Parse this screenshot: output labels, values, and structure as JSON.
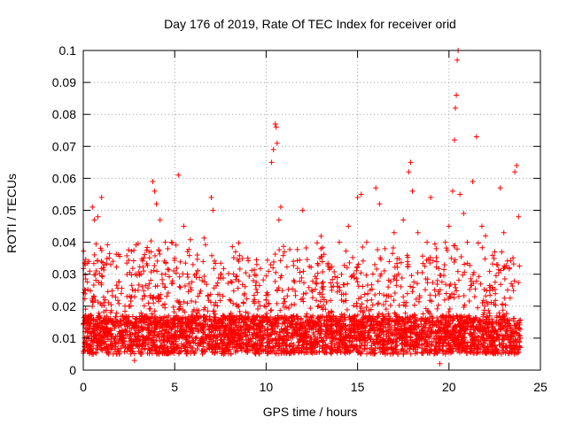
{
  "chart_data": {
    "type": "scatter",
    "title": "Day 176 of 2019, Rate Of TEC Index for receiver orid",
    "xlabel": "GPS time / hours",
    "ylabel": "ROTI / TECUs",
    "xlim": [
      0,
      25
    ],
    "ylim": [
      0,
      0.1
    ],
    "x_ticks": [
      0,
      5,
      10,
      15,
      20,
      25
    ],
    "x_tick_labels": [
      "0",
      "5",
      "10",
      "15",
      "20",
      "25"
    ],
    "y_ticks": [
      0,
      0.01,
      0.02,
      0.03,
      0.04,
      0.05,
      0.06,
      0.07,
      0.08,
      0.09,
      0.1
    ],
    "y_tick_labels": [
      "0",
      "0.01",
      "0.02",
      "0.03",
      "0.04",
      "0.05",
      "0.06",
      "0.07",
      "0.08",
      "0.09",
      "0.1"
    ],
    "grid": true,
    "marker": "+",
    "series_color": "#ff0000",
    "series": [
      {
        "name": "ROTI",
        "points": [
          [
            0.1,
            0.012
          ],
          [
            0.3,
            0.034
          ],
          [
            0.5,
            0.051
          ],
          [
            0.6,
            0.047
          ],
          [
            0.8,
            0.048
          ],
          [
            1.0,
            0.054
          ],
          [
            1.2,
            0.022
          ],
          [
            1.5,
            0.018
          ],
          [
            2.0,
            0.015
          ],
          [
            2.5,
            0.02
          ],
          [
            2.8,
            0.003
          ],
          [
            3.0,
            0.025
          ],
          [
            3.3,
            0.031
          ],
          [
            3.6,
            0.037
          ],
          [
            3.8,
            0.059
          ],
          [
            3.9,
            0.056
          ],
          [
            4.0,
            0.052
          ],
          [
            4.2,
            0.047
          ],
          [
            4.5,
            0.03
          ],
          [
            5.0,
            0.035
          ],
          [
            5.2,
            0.061
          ],
          [
            5.5,
            0.045
          ],
          [
            6.0,
            0.033
          ],
          [
            6.5,
            0.028
          ],
          [
            7.0,
            0.054
          ],
          [
            7.1,
            0.05
          ],
          [
            7.5,
            0.03
          ],
          [
            8.0,
            0.022
          ],
          [
            8.5,
            0.02
          ],
          [
            9.0,
            0.035
          ],
          [
            9.3,
            0.028
          ],
          [
            9.8,
            0.015
          ],
          [
            10.0,
            0.022
          ],
          [
            10.3,
            0.065
          ],
          [
            10.4,
            0.069
          ],
          [
            10.5,
            0.077
          ],
          [
            10.55,
            0.076
          ],
          [
            10.6,
            0.071
          ],
          [
            10.7,
            0.047
          ],
          [
            10.8,
            0.051
          ],
          [
            11.0,
            0.037
          ],
          [
            11.5,
            0.028
          ],
          [
            12.0,
            0.05
          ],
          [
            12.5,
            0.025
          ],
          [
            13.0,
            0.038
          ],
          [
            13.5,
            0.032
          ],
          [
            14.0,
            0.04
          ],
          [
            14.5,
            0.045
          ],
          [
            14.8,
            0.03
          ],
          [
            15.0,
            0.054
          ],
          [
            15.2,
            0.055
          ],
          [
            15.5,
            0.04
          ],
          [
            16.0,
            0.057
          ],
          [
            16.2,
            0.052
          ],
          [
            16.5,
            0.038
          ],
          [
            17.0,
            0.043
          ],
          [
            17.5,
            0.047
          ],
          [
            17.8,
            0.062
          ],
          [
            17.9,
            0.065
          ],
          [
            18.0,
            0.056
          ],
          [
            18.3,
            0.043
          ],
          [
            18.8,
            0.04
          ],
          [
            19.0,
            0.054
          ],
          [
            19.3,
            0.038
          ],
          [
            19.5,
            0.002
          ],
          [
            19.8,
            0.04
          ],
          [
            20.0,
            0.045
          ],
          [
            20.2,
            0.056
          ],
          [
            20.3,
            0.072
          ],
          [
            20.35,
            0.082
          ],
          [
            20.4,
            0.086
          ],
          [
            20.45,
            0.097
          ],
          [
            20.5,
            0.1
          ],
          [
            20.6,
            0.055
          ],
          [
            20.8,
            0.049
          ],
          [
            21.0,
            0.04
          ],
          [
            21.3,
            0.059
          ],
          [
            21.5,
            0.073
          ],
          [
            21.8,
            0.045
          ],
          [
            22.0,
            0.042
          ],
          [
            22.5,
            0.037
          ],
          [
            22.8,
            0.057
          ],
          [
            23.0,
            0.043
          ],
          [
            23.3,
            0.032
          ],
          [
            23.6,
            0.062
          ],
          [
            23.7,
            0.064
          ],
          [
            23.8,
            0.048
          ],
          [
            23.9,
            0.01
          ]
        ]
      }
    ]
  }
}
